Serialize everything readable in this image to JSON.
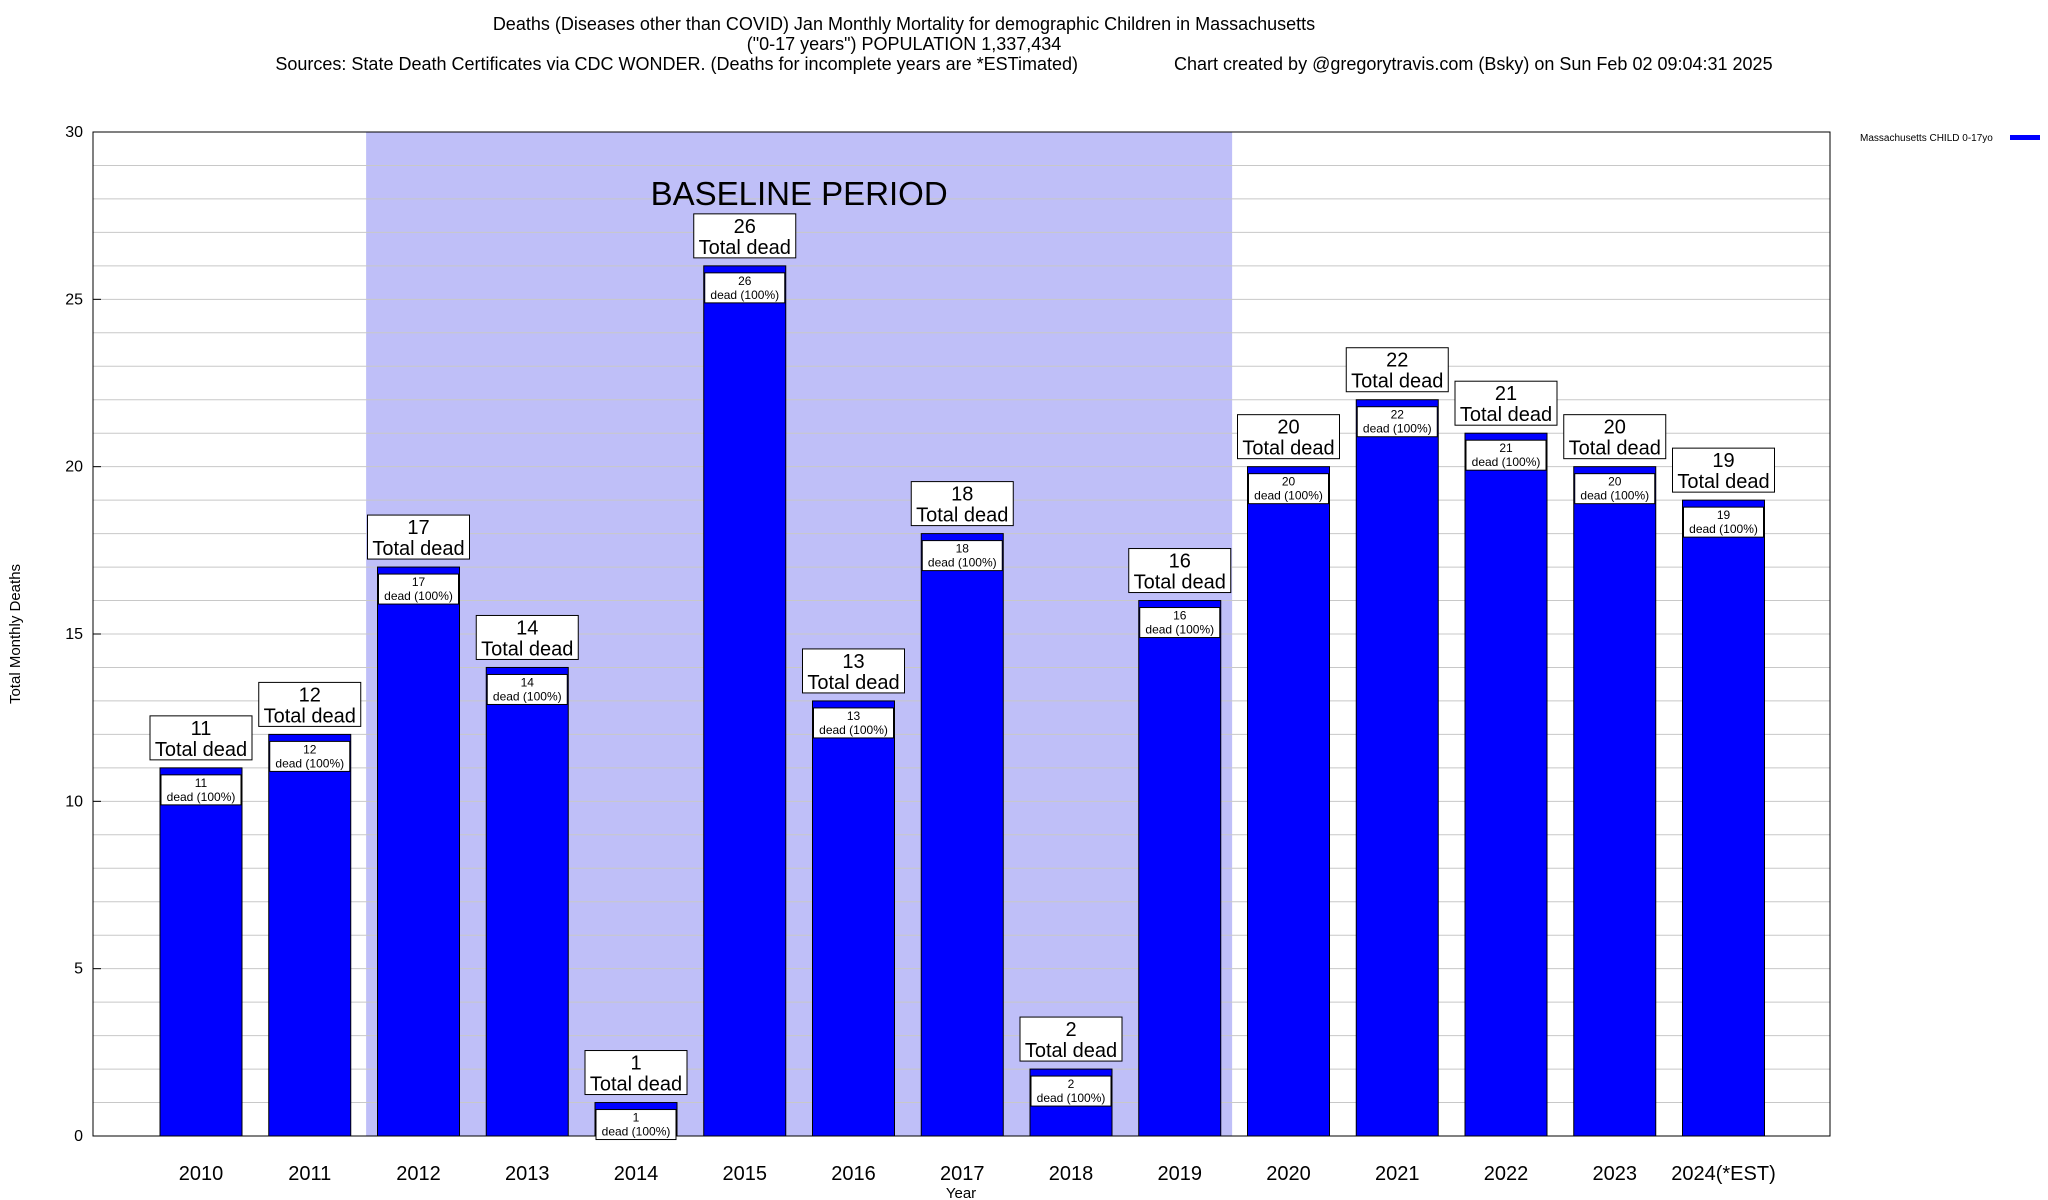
{
  "chart_data": {
    "type": "bar",
    "title": "Deaths (Diseases other than COVID) Jan Monthly Mortality for demographic Children in Massachusetts",
    "subtitle": "(\"0-17 years\") POPULATION 1,337,434",
    "sources": "Sources: State Death Certificates via CDC WONDER. (Deaths for incomplete years are *ESTimated)",
    "credit": "Chart created by @gregorytravis.com (Bsky) on Sun Feb 02 09:04:31 2025",
    "xlabel": "Year",
    "ylabel": "Total Monthly Deaths",
    "ylim": [
      0,
      30
    ],
    "yticks": [
      0,
      5,
      10,
      15,
      20,
      25,
      30
    ],
    "grid": true,
    "legend_position": "top-right",
    "categories": [
      "2010",
      "2011",
      "2012",
      "2013",
      "2014",
      "2015",
      "2016",
      "2017",
      "2018",
      "2019",
      "2020",
      "2021",
      "2022",
      "2023",
      "2024(*EST)"
    ],
    "series": [
      {
        "name": "Massachusetts CHILD 0-17yo",
        "color": "#0000ff",
        "values": [
          11,
          12,
          17,
          14,
          1,
          26,
          13,
          18,
          2,
          16,
          20,
          22,
          21,
          20,
          19
        ]
      }
    ],
    "total_label_suffix": "Total dead",
    "inner_label_suffix": "dead (100%)",
    "baseline": {
      "label": "BASELINE PERIOD",
      "start": "2012",
      "end": "2019",
      "color": "#bfbff8"
    }
  }
}
